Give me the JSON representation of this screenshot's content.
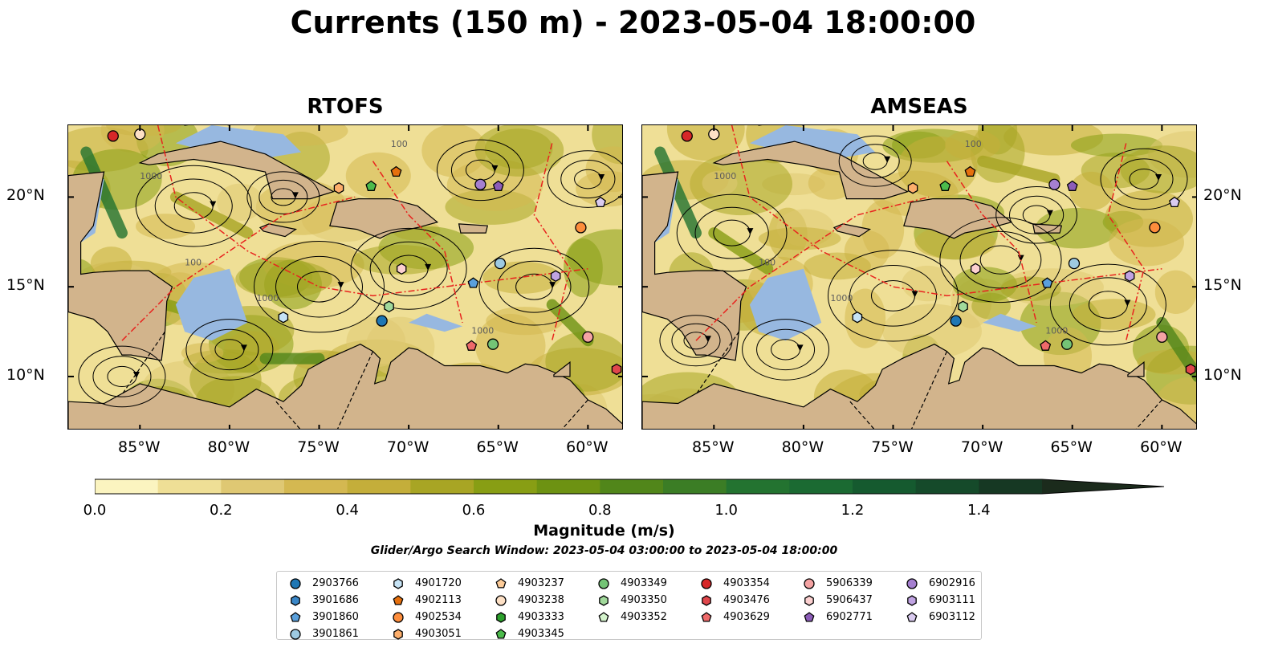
{
  "title": "Currents (150 m) - 2023-05-04 18:00:00",
  "panels": [
    {
      "name": "RTOFS"
    },
    {
      "name": "AMSEAS"
    }
  ],
  "x_ticks": [
    "85°W",
    "80°W",
    "75°W",
    "70°W",
    "65°W",
    "60°W"
  ],
  "y_ticks": [
    "20°N",
    "15°N",
    "10°N"
  ],
  "colorbar": {
    "label": "Magnitude (m/s)",
    "ticks": [
      "0.0",
      "0.2",
      "0.4",
      "0.6",
      "0.8",
      "1.0",
      "1.2",
      "1.4"
    ],
    "levels": [
      0.0,
      0.1,
      0.2,
      0.3,
      0.4,
      0.5,
      0.6,
      0.7,
      0.8,
      0.9,
      1.0,
      1.1,
      1.2,
      1.3,
      1.4,
      1.5
    ],
    "colors": [
      "#fbf4c0",
      "#efdf96",
      "#dfc873",
      "#d4b851",
      "#c4ae3a",
      "#a8a524",
      "#889e14",
      "#6d9212",
      "#51861a",
      "#3b7d25",
      "#237330",
      "#1b6a32",
      "#155a2f",
      "#154a2a",
      "#163823",
      "#1b2b1c"
    ],
    "extend": "max"
  },
  "search_window": "Glider/Argo Search Window: 2023-05-04 03:00:00 to 2023-05-04 18:00:00",
  "legend": [
    {
      "id": "2903766",
      "marker": "circle",
      "color": "#1f77b4"
    },
    {
      "id": "3901686",
      "marker": "hexagon",
      "color": "#3a87c8"
    },
    {
      "id": "3901860",
      "marker": "pentagon",
      "color": "#5aa0dc"
    },
    {
      "id": "3901861",
      "marker": "circle",
      "color": "#9ecae1"
    },
    {
      "id": "4901720",
      "marker": "hexagon",
      "color": "#c6e3f5"
    },
    {
      "id": "4902113",
      "marker": "pentagon",
      "color": "#e6700e"
    },
    {
      "id": "4902534",
      "marker": "circle",
      "color": "#fd8d3c"
    },
    {
      "id": "4903051",
      "marker": "hexagon",
      "color": "#fdae6b"
    },
    {
      "id": "4903237",
      "marker": "pentagon",
      "color": "#fdcc99"
    },
    {
      "id": "4903238",
      "marker": "circle",
      "color": "#fde0c5"
    },
    {
      "id": "4903333",
      "marker": "hexagon",
      "color": "#2ca02c"
    },
    {
      "id": "4903345",
      "marker": "pentagon",
      "color": "#4cbb4c"
    },
    {
      "id": "4903349",
      "marker": "circle",
      "color": "#74c476"
    },
    {
      "id": "4903350",
      "marker": "hexagon",
      "color": "#a1d99b"
    },
    {
      "id": "4903352",
      "marker": "pentagon",
      "color": "#d4f3cc"
    },
    {
      "id": "4903354",
      "marker": "circle",
      "color": "#d62728"
    },
    {
      "id": "4903476",
      "marker": "hexagon",
      "color": "#e0474c"
    },
    {
      "id": "4903629",
      "marker": "pentagon",
      "color": "#ee6a6a"
    },
    {
      "id": "5906339",
      "marker": "circle",
      "color": "#f4a3a3"
    },
    {
      "id": "5906437",
      "marker": "hexagon",
      "color": "#fcd0d0"
    },
    {
      "id": "6902771",
      "marker": "pentagon",
      "color": "#8c5cb8"
    },
    {
      "id": "6902916",
      "marker": "circle",
      "color": "#a57fd0"
    },
    {
      "id": "6903111",
      "marker": "hexagon",
      "color": "#c0a3e2"
    },
    {
      "id": "6903112",
      "marker": "pentagon",
      "color": "#dacbf0"
    }
  ],
  "floats": [
    {
      "id": "4903354",
      "lon": -86.5,
      "lat": 23.4
    },
    {
      "id": "4903238",
      "lon": -85.0,
      "lat": 23.5
    },
    {
      "id": "4903051",
      "lon": -73.9,
      "lat": 20.5
    },
    {
      "id": "4903345",
      "lon": -72.1,
      "lat": 20.6
    },
    {
      "id": "4902113",
      "lon": -70.7,
      "lat": 21.4
    },
    {
      "id": "6902916",
      "lon": -66.0,
      "lat": 20.7
    },
    {
      "id": "6902771",
      "lon": -65.0,
      "lat": 20.6
    },
    {
      "id": "6903112",
      "lon": -59.3,
      "lat": 19.7
    },
    {
      "id": "4902534",
      "lon": -60.4,
      "lat": 18.3
    },
    {
      "id": "5906437",
      "lon": -70.4,
      "lat": 16.0
    },
    {
      "id": "3901861",
      "lon": -64.9,
      "lat": 16.3
    },
    {
      "id": "3901860",
      "lon": -66.4,
      "lat": 15.2
    },
    {
      "id": "6903111",
      "lon": -61.8,
      "lat": 15.6
    },
    {
      "id": "4903350",
      "lon": -71.1,
      "lat": 13.9
    },
    {
      "id": "4901720",
      "lon": -77.0,
      "lat": 13.3
    },
    {
      "id": "2903766",
      "lon": -71.5,
      "lat": 13.1
    },
    {
      "id": "4903629",
      "lon": -66.5,
      "lat": 11.7
    },
    {
      "id": "4903349",
      "lon": -65.3,
      "lat": 11.8
    },
    {
      "id": "5906339",
      "lon": -60.0,
      "lat": 12.2
    },
    {
      "id": "4903476",
      "lon": -58.4,
      "lat": 10.4
    }
  ],
  "bathymetry_labels": [
    "100",
    "1000",
    "1000",
    "100",
    "1000"
  ],
  "map_extent": {
    "lon": [
      -89.0,
      -58.0
    ],
    "lat": [
      7.0,
      24.0
    ]
  }
}
